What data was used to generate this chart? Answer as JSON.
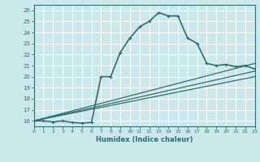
{
  "xlabel": "Humidex (Indice chaleur)",
  "xlim": [
    0,
    23
  ],
  "ylim": [
    15.5,
    26.5
  ],
  "xticks": [
    0,
    1,
    2,
    3,
    4,
    5,
    6,
    7,
    8,
    9,
    10,
    11,
    12,
    13,
    14,
    15,
    16,
    17,
    18,
    19,
    20,
    21,
    22,
    23
  ],
  "yticks": [
    16,
    17,
    18,
    19,
    20,
    21,
    22,
    23,
    24,
    25,
    26
  ],
  "bg_color": "#cde8ec",
  "line_color": "#2b6e6e",
  "grid_color": "#ffffff",
  "main_curve": {
    "x": [
      0,
      1,
      2,
      3,
      4,
      5,
      6,
      7,
      8,
      9,
      10,
      11,
      12,
      13,
      14,
      15,
      16,
      17,
      18,
      19,
      20,
      21,
      22,
      23
    ],
    "y": [
      16,
      16,
      15.9,
      16,
      15.85,
      15.8,
      15.85,
      20.0,
      20.0,
      22.2,
      23.5,
      24.5,
      25.0,
      25.8,
      25.5,
      25.5,
      23.5,
      23.0,
      21.2,
      21.0,
      21.1,
      20.9,
      21.0,
      20.7
    ],
    "marker_x": [
      0,
      1,
      2,
      3,
      4,
      5,
      6,
      7,
      8,
      9,
      10,
      11,
      12,
      13,
      14,
      15,
      16,
      17,
      18,
      19,
      20,
      21,
      22,
      23
    ],
    "linewidth": 1.2,
    "markersize": 2.5
  },
  "ref_lines": [
    {
      "x": [
        0,
        23
      ],
      "y": [
        16,
        21.2
      ],
      "linewidth": 0.9
    },
    {
      "x": [
        0,
        23
      ],
      "y": [
        16,
        20.5
      ],
      "linewidth": 0.9
    },
    {
      "x": [
        0,
        23
      ],
      "y": [
        16,
        20.0
      ],
      "linewidth": 0.9
    }
  ]
}
